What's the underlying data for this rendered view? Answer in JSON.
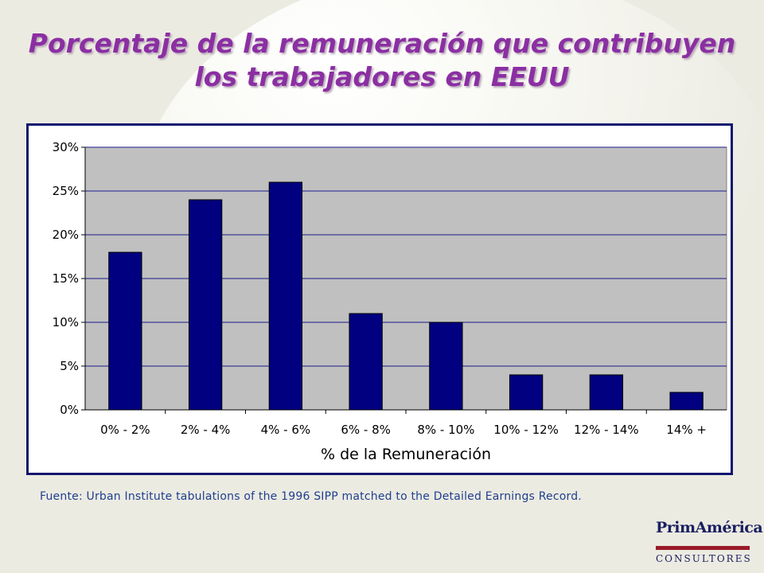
{
  "slide": {
    "title_line1": "Porcentaje de la remuneración que contribuyen",
    "title_line2": "los trabajadores en EEUU",
    "source": "Fuente: Urban Institute tabulations of the 1996 SIPP matched to the Detailed Earnings Record."
  },
  "logo": {
    "name": "PrimAmérica",
    "subtitle": "CONSULTORES"
  },
  "colors": {
    "title": "#8b2fa3",
    "bar": "#000080",
    "plot_background": "#c0c0c0",
    "gridline": "#1a1a8c",
    "frame_border": "#12166e"
  },
  "chart_data": {
    "type": "bar",
    "title": "",
    "xlabel": "% de la Remuneración",
    "ylabel": "",
    "categories": [
      "0% - 2%",
      "2% - 4%",
      "4% - 6%",
      "6% - 8%",
      "8% - 10%",
      "10% - 12%",
      "12% - 14%",
      "14% +"
    ],
    "values": [
      18,
      24,
      26,
      11,
      10,
      4,
      4,
      2
    ],
    "ylim": [
      0,
      30
    ],
    "yticks": [
      0,
      5,
      10,
      15,
      20,
      25,
      30
    ],
    "ytick_labels": [
      "0%",
      "5%",
      "10%",
      "15%",
      "20%",
      "25%",
      "30%"
    ],
    "grid": true,
    "legend": "none"
  }
}
